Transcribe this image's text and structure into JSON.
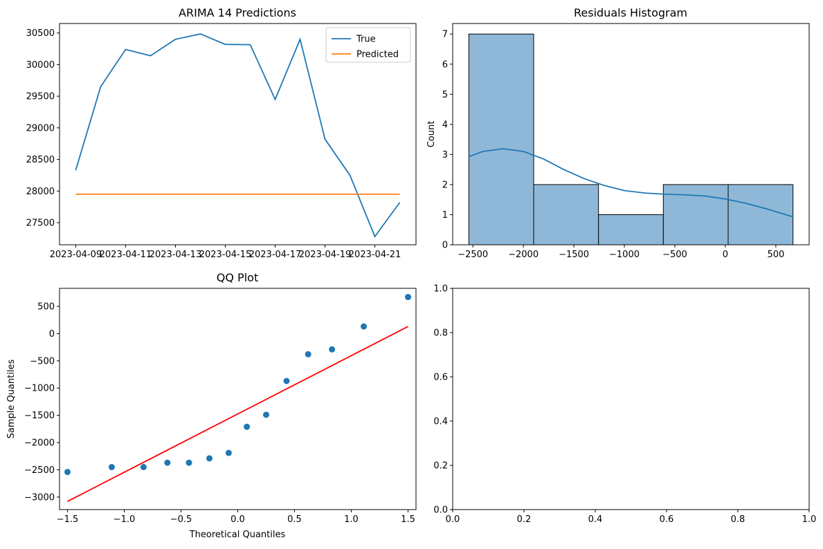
{
  "chart_data": [
    {
      "type": "line",
      "title": "ARIMA 14 Predictions",
      "xlabel": "",
      "ylabel": "",
      "x": [
        "2023-04-09",
        "2023-04-10",
        "2023-04-11",
        "2023-04-12",
        "2023-04-13",
        "2023-04-14",
        "2023-04-15",
        "2023-04-16",
        "2023-04-17",
        "2023-04-18",
        "2023-04-19",
        "2023-04-20",
        "2023-04-21",
        "2023-04-22"
      ],
      "x_ticks": [
        "2023-04-09",
        "2023-04-11",
        "2023-04-13",
        "2023-04-15",
        "2023-04-17",
        "2023-04-19",
        "2023-04-21"
      ],
      "ylim": [
        27150,
        30650
      ],
      "y_ticks": [
        27500,
        28000,
        28500,
        29000,
        29500,
        30000,
        30500
      ],
      "legend_position": "upper right",
      "series": [
        {
          "name": "True",
          "color": "#1f77b4",
          "values": [
            28330,
            29650,
            30240,
            30140,
            30400,
            30485,
            30320,
            30315,
            29450,
            30400,
            28820,
            28250,
            27280,
            27820
          ]
        },
        {
          "name": "Predicted",
          "color": "#ff7f0e",
          "values": [
            27950,
            27950,
            27950,
            27950,
            27950,
            27950,
            27950,
            27950,
            27950,
            27950,
            27950,
            27950,
            27950,
            27950
          ]
        }
      ],
      "grid": false
    },
    {
      "type": "bar",
      "title": "Residuals Histogram",
      "xlabel": "",
      "ylabel": "Count",
      "bin_edges": [
        -2540,
        -1898,
        -1256,
        -614,
        28,
        670
      ],
      "values": [
        7,
        2,
        1,
        2,
        2
      ],
      "xlim": [
        -2700,
        830
      ],
      "ylim": [
        0,
        7.35
      ],
      "x_ticks": [
        -2500,
        -2000,
        -1500,
        -1000,
        -500,
        0,
        500
      ],
      "y_ticks": [
        0,
        1,
        2,
        3,
        4,
        5,
        6,
        7
      ],
      "bar_color": "#8fb8d8",
      "kde_color": "#1f77b4",
      "kde": {
        "x": [
          -2540,
          -2400,
          -2200,
          -2000,
          -1800,
          -1600,
          -1400,
          -1200,
          -1000,
          -800,
          -600,
          -400,
          -200,
          0,
          200,
          400,
          670
        ],
        "y": [
          2.93,
          3.1,
          3.19,
          3.1,
          2.85,
          2.5,
          2.2,
          1.97,
          1.8,
          1.72,
          1.68,
          1.66,
          1.62,
          1.52,
          1.38,
          1.2,
          0.93
        ]
      },
      "grid": false
    },
    {
      "type": "scatter",
      "title": "QQ Plot",
      "xlabel": "Theoretical Quantiles",
      "ylabel": "Sample Quantiles",
      "xlim": [
        -1.57,
        1.57
      ],
      "ylim": [
        -3230,
        830
      ],
      "x_ticks": [
        -1.5,
        -1.0,
        -0.5,
        0.0,
        0.5,
        1.0,
        1.5
      ],
      "y_ticks": [
        -3000,
        -2500,
        -2000,
        -1500,
        -1000,
        -500,
        0,
        500
      ],
      "points": {
        "x": [
          -1.5,
          -1.11,
          -0.83,
          -0.62,
          -0.43,
          -0.25,
          -0.08,
          0.08,
          0.25,
          0.43,
          0.62,
          0.83,
          1.11,
          1.5
        ],
        "y": [
          -2540,
          -2450,
          -2450,
          -2370,
          -2370,
          -2290,
          -2190,
          -1710,
          -1490,
          -870,
          -380,
          -290,
          130,
          670
        ]
      },
      "point_color": "#1f77b4",
      "reference_line": {
        "x": [
          -1.5,
          1.5
        ],
        "y": [
          -3080,
          130
        ],
        "color": "#ff0000"
      },
      "grid": false
    },
    {
      "type": "scatter",
      "title": "",
      "xlabel": "",
      "ylabel": "",
      "xlim": [
        0,
        1
      ],
      "ylim": [
        0,
        1
      ],
      "x_ticks": [
        0.0,
        0.2,
        0.4,
        0.6,
        0.8,
        1.0
      ],
      "y_ticks": [
        0.0,
        0.2,
        0.4,
        0.6,
        0.8,
        1.0
      ],
      "grid": false
    }
  ]
}
